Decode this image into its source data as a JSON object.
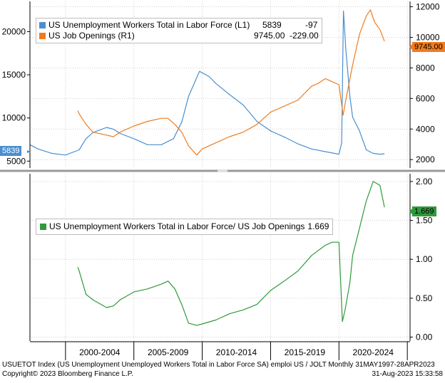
{
  "chart_data": [
    {
      "type": "line",
      "panel": "top",
      "title": "",
      "xlabel": "",
      "ylabel_left": "",
      "ylabel_right": "",
      "left_axis": {
        "ylim": [
          4200,
          23500
        ],
        "ticks": [
          5000,
          10000,
          15000,
          20000
        ]
      },
      "right_axis": {
        "ylim": [
          1450,
          12350
        ],
        "ticks": [
          2000,
          4000,
          6000,
          8000,
          10000,
          12000
        ]
      },
      "series": [
        {
          "name": "US Unemployment Workers Total in Labor Force (L1)",
          "axis": "left",
          "color": "#4a8ed0",
          "legend_value": "5839",
          "legend_change": "-97",
          "last_label": "5839",
          "x": [
            1997.4,
            1998.0,
            1999.0,
            2000.0,
            2001.0,
            2001.5,
            2002.0,
            2003.0,
            2003.5,
            2004.0,
            2005.0,
            2006.0,
            2007.0,
            2007.9,
            2008.5,
            2009.0,
            2009.8,
            2010.5,
            2011.0,
            2012.0,
            2013.0,
            2014.0,
            2015.0,
            2016.0,
            2017.0,
            2018.0,
            2019.0,
            2020.0,
            2020.2,
            2020.33,
            2020.5,
            2020.8,
            2021.0,
            2021.5,
            2022.0,
            2022.5,
            2023.0,
            2023.33
          ],
          "y": [
            6900,
            6400,
            5900,
            5700,
            6300,
            7600,
            8300,
            8900,
            8700,
            8200,
            7600,
            6900,
            6900,
            7600,
            9500,
            12500,
            15400,
            14800,
            14000,
            12700,
            11500,
            9600,
            8500,
            7800,
            7000,
            6400,
            6100,
            5800,
            7100,
            22400,
            18000,
            12500,
            10100,
            8500,
            6300,
            5900,
            5800,
            5839
          ]
        },
        {
          "name": "US Job Openings (R1)",
          "axis": "right",
          "color": "#f07b1e",
          "legend_value": "9745.00",
          "legend_change": "-229.00",
          "last_label": "9745.00",
          "x": [
            2000.9,
            2001.0,
            2001.5,
            2002.0,
            2003.0,
            2003.5,
            2004.0,
            2005.0,
            2006.0,
            2007.0,
            2007.5,
            2008.0,
            2008.5,
            2009.0,
            2009.6,
            2010.0,
            2011.0,
            2012.0,
            2013.0,
            2014.0,
            2015.0,
            2016.0,
            2017.0,
            2018.0,
            2018.5,
            2019.0,
            2019.5,
            2020.0,
            2020.3,
            2020.5,
            2021.0,
            2021.5,
            2022.0,
            2022.3,
            2022.6,
            2023.0,
            2023.33
          ],
          "y": [
            5200,
            5000,
            4300,
            3800,
            3600,
            3500,
            3800,
            4200,
            4500,
            4700,
            4700,
            4300,
            3800,
            2900,
            2300,
            2700,
            3100,
            3500,
            3800,
            4300,
            5100,
            5500,
            5900,
            6800,
            7000,
            7300,
            7100,
            6900,
            4900,
            5900,
            8200,
            10200,
            11400,
            11800,
            11000,
            10500,
            9745
          ]
        }
      ]
    },
    {
      "type": "line",
      "panel": "bottom",
      "title": "",
      "xlabel": "",
      "ylabel": "",
      "ylim": [
        -0.05,
        2.1
      ],
      "ticks": [
        0.0,
        0.5,
        1.0,
        1.5,
        2.0
      ],
      "tick_labels": [
        "0.00",
        "0.50",
        "1.00",
        "1.50",
        "2.00"
      ],
      "series": [
        {
          "name": "US Unemployment Workers Total in Labor Force/ US Job Openings",
          "color": "#2e9a3c",
          "legend_value": "1.669",
          "last_label": "1.669",
          "x": [
            2000.9,
            2001.0,
            2001.5,
            2002.0,
            2003.0,
            2003.5,
            2004.0,
            2005.0,
            2006.0,
            2007.0,
            2007.5,
            2008.0,
            2008.5,
            2009.0,
            2009.6,
            2010.0,
            2011.0,
            2012.0,
            2013.0,
            2014.0,
            2015.0,
            2016.0,
            2017.0,
            2018.0,
            2019.0,
            2019.5,
            2020.0,
            2020.25,
            2020.45,
            2020.8,
            2021.0,
            2021.5,
            2022.0,
            2022.5,
            2023.0,
            2023.33
          ],
          "y": [
            0.9,
            0.85,
            0.55,
            0.48,
            0.38,
            0.4,
            0.48,
            0.58,
            0.62,
            0.68,
            0.72,
            0.62,
            0.42,
            0.18,
            0.15,
            0.17,
            0.22,
            0.3,
            0.35,
            0.42,
            0.6,
            0.72,
            0.85,
            1.05,
            1.18,
            1.22,
            1.22,
            0.2,
            0.35,
            0.7,
            1.05,
            1.4,
            1.75,
            2.0,
            1.95,
            1.669
          ]
        }
      ]
    }
  ],
  "x_axis": {
    "range": [
      1997.4,
      2025.2
    ],
    "period_labels": [
      "2000-2004",
      "2005-2009",
      "2010-2014",
      "2015-2019",
      "2020-2024"
    ],
    "period_starts": [
      2000,
      2005,
      2010,
      2015,
      2020,
      2025
    ]
  },
  "colors": {
    "unemployment": "#4a8ed0",
    "openings": "#f07b1e",
    "ratio": "#2e9a3c",
    "tag_text": "#000000"
  },
  "footer": {
    "line1_left": "USUETOT Index (US Unemployment Unemployed Workers Total in Labor Force SA) emploi US / JOLT Monthly 31MAY1997-28APR2023",
    "line2_left": "Copyright© 2023 Bloomberg Finance L.P.",
    "line2_right": "31-Aug-2023 15:33:58"
  }
}
